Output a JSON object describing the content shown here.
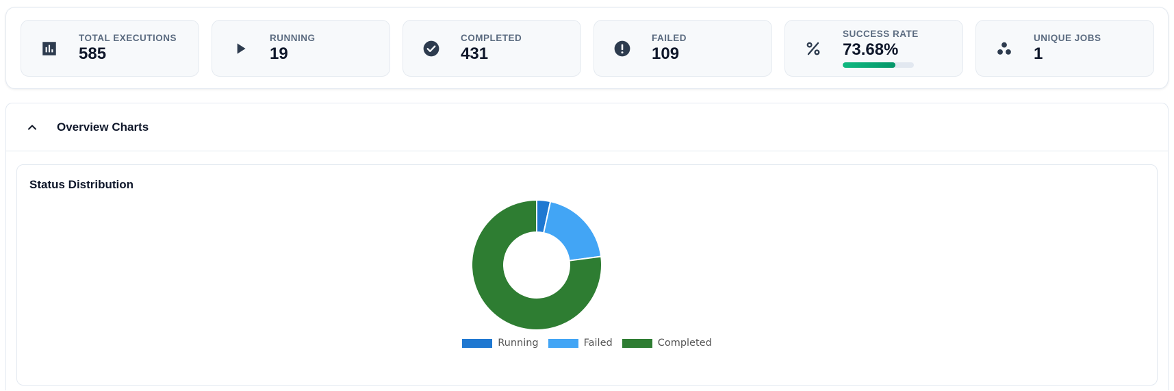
{
  "stats": [
    {
      "key": "total",
      "label": "TOTAL EXECUTIONS",
      "value": "585",
      "icon": "bar-chart-icon"
    },
    {
      "key": "running",
      "label": "RUNNING",
      "value": "19",
      "icon": "play-icon"
    },
    {
      "key": "completed",
      "label": "COMPLETED",
      "value": "431",
      "icon": "check-circle-icon"
    },
    {
      "key": "failed",
      "label": "FAILED",
      "value": "109",
      "icon": "error-icon"
    },
    {
      "key": "success",
      "label": "SUCCESS RATE",
      "value": "73.68%",
      "icon": "percent-icon",
      "progress": 0.7368
    },
    {
      "key": "unique",
      "label": "UNIQUE JOBS",
      "value": "1",
      "icon": "workspaces-icon"
    }
  ],
  "overview": {
    "title": "Overview Charts",
    "expanded": true,
    "toggle_icon": "chevron-up-icon"
  },
  "chart_data": {
    "type": "pie",
    "title": "Status Distribution",
    "donut": true,
    "labels": [
      "Running",
      "Failed",
      "Completed"
    ],
    "values": [
      19,
      109,
      431
    ],
    "colors": [
      "#1f78d1",
      "#42a5f5",
      "#2e7d32"
    ],
    "legend": "bottom"
  }
}
